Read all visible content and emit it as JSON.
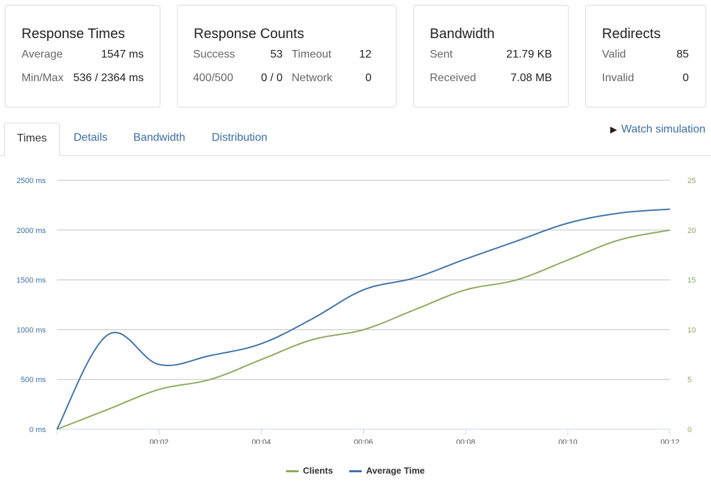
{
  "cards": {
    "response_times": {
      "title": "Response Times",
      "average_label": "Average",
      "average_value": "1547 ms",
      "minmax_label": "Min/Max",
      "minmax_value": "536 / 2364 ms"
    },
    "response_counts": {
      "title": "Response Counts",
      "success_label": "Success",
      "success_value": "53",
      "timeout_label": "Timeout",
      "timeout_value": "12",
      "err_label": "400/500",
      "err_value": "0 / 0",
      "network_label": "Network",
      "network_value": "0"
    },
    "bandwidth": {
      "title": "Bandwidth",
      "sent_label": "Sent",
      "sent_value": "21.79 KB",
      "received_label": "Received",
      "received_value": "7.08 MB"
    },
    "redirects": {
      "title": "Redirects",
      "valid_label": "Valid",
      "valid_value": "85",
      "invalid_label": "Invalid",
      "invalid_value": "0"
    }
  },
  "tabs": {
    "times": "Times",
    "details": "Details",
    "bandwidth": "Bandwidth",
    "distribution": "Distribution"
  },
  "watch_simulation": "Watch simulation",
  "colors": {
    "clients": "#8aab5a",
    "average_time": "#3f73a8",
    "link": "#3a6ea5"
  },
  "chart_data": {
    "type": "line",
    "x_ticks": [
      "00:02",
      "00:04",
      "00:06",
      "00:08",
      "00:10",
      "00:12"
    ],
    "y_left_ticks": [
      "0 ms",
      "500 ms",
      "1000 ms",
      "1500 ms",
      "2000 ms",
      "2500 ms"
    ],
    "y_right_ticks": [
      "0",
      "5",
      "10",
      "15",
      "20",
      "25"
    ],
    "ylim_left": [
      0,
      2500
    ],
    "ylim_right": [
      0,
      25
    ],
    "xlim": [
      0,
      12
    ],
    "grid": true,
    "legend_position": "bottom",
    "series": [
      {
        "name": "Clients",
        "axis": "right",
        "x": [
          0,
          1,
          2,
          3,
          4,
          5,
          6,
          7,
          8,
          9,
          10,
          11,
          12
        ],
        "values": [
          0,
          2,
          4,
          5,
          7,
          9,
          10,
          12,
          14,
          15,
          17,
          19,
          20
        ]
      },
      {
        "name": "Average Time",
        "axis": "left",
        "x": [
          0,
          1,
          2,
          3,
          4,
          5,
          6,
          7,
          8,
          9,
          10,
          11,
          12
        ],
        "values": [
          0,
          950,
          650,
          740,
          860,
          1110,
          1400,
          1520,
          1710,
          1890,
          2070,
          2170,
          2210
        ]
      }
    ]
  }
}
